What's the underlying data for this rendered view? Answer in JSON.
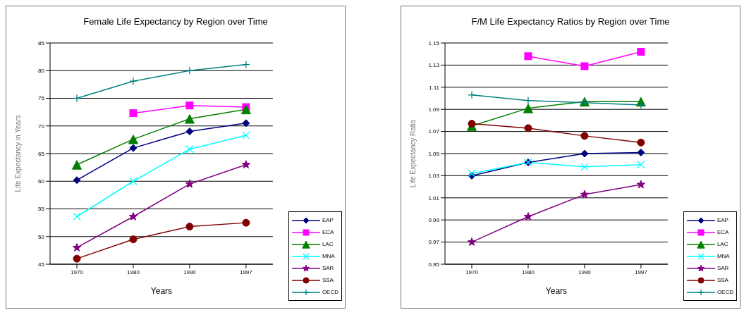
{
  "chart_data": [
    {
      "type": "line",
      "title": "Female Life Expectancy by Region over Time",
      "xlabel": "Years",
      "ylabel": "Life Expectancy in Years",
      "categories": [
        "1970",
        "1980",
        "1990",
        "1997"
      ],
      "ylim": [
        45,
        85
      ],
      "yticks": [
        45,
        50,
        55,
        60,
        65,
        70,
        75,
        80,
        85
      ],
      "grid": "y",
      "legend": "bottom right",
      "series": [
        {
          "name": "EAP",
          "color": "#000080",
          "marker": "diamond",
          "values": [
            60.2,
            66,
            69,
            70.5
          ]
        },
        {
          "name": "ECA",
          "color": "#ff00ff",
          "marker": "square",
          "values": [
            null,
            72.3,
            73.7,
            73.4
          ]
        },
        {
          "name": "LAC",
          "color": "#008000",
          "marker": "triangle",
          "values": [
            63,
            67.6,
            71.3,
            73
          ]
        },
        {
          "name": "MNA",
          "color": "#00ffff",
          "marker": "cross",
          "values": [
            53.6,
            60,
            65.8,
            68.3
          ]
        },
        {
          "name": "SAR",
          "color": "#800080",
          "marker": "star",
          "values": [
            48,
            53.6,
            59.5,
            63
          ]
        },
        {
          "name": "SSA",
          "color": "#800000",
          "marker": "circle",
          "values": [
            46,
            49.5,
            51.8,
            52.5
          ]
        },
        {
          "name": "OECD",
          "color": "#008080",
          "marker": "plus",
          "values": [
            75,
            78.1,
            80,
            81.1
          ]
        }
      ]
    },
    {
      "type": "line",
      "title": "F/M Life Expectancy Ratios by Region over Time",
      "xlabel": "Years",
      "ylabel": "Life Expectancy Ratio",
      "categories": [
        "1970",
        "1980",
        "1990",
        "1997"
      ],
      "ylim": [
        0.95,
        1.15
      ],
      "yticks": [
        0.95,
        0.97,
        0.99,
        1.01,
        1.03,
        1.05,
        1.07,
        1.09,
        1.11,
        1.13,
        1.15
      ],
      "grid": "y",
      "legend": "bottom right",
      "series": [
        {
          "name": "EAP",
          "color": "#000080",
          "marker": "diamond",
          "values": [
            1.03,
            1.042,
            1.05,
            1.051
          ]
        },
        {
          "name": "ECA",
          "color": "#ff00ff",
          "marker": "square",
          "values": [
            null,
            1.138,
            1.129,
            1.142
          ]
        },
        {
          "name": "LAC",
          "color": "#008000",
          "marker": "triangle",
          "values": [
            1.075,
            1.091,
            1.097,
            1.097
          ]
        },
        {
          "name": "MNA",
          "color": "#00ffff",
          "marker": "cross",
          "values": [
            1.032,
            1.042,
            1.038,
            1.04
          ]
        },
        {
          "name": "SAR",
          "color": "#800080",
          "marker": "star",
          "values": [
            0.97,
            0.993,
            1.013,
            1.022
          ]
        },
        {
          "name": "SSA",
          "color": "#800000",
          "marker": "circle",
          "values": [
            1.077,
            1.073,
            1.066,
            1.06
          ]
        },
        {
          "name": "OECD",
          "color": "#008080",
          "marker": "plus",
          "values": [
            1.103,
            1.098,
            1.096,
            1.094
          ]
        }
      ]
    }
  ]
}
